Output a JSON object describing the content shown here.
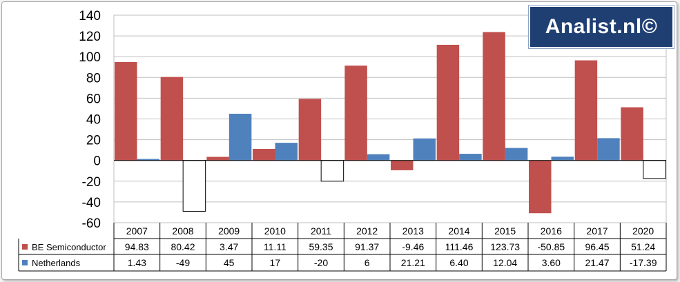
{
  "watermark": "Analist.nl©",
  "chart_data": {
    "type": "bar",
    "categories": [
      "2007",
      "2008",
      "2009",
      "2010",
      "2011",
      "2012",
      "2013",
      "2014",
      "2015",
      "2016",
      "2017",
      "2020"
    ],
    "series": [
      {
        "name": "BE Semiconductor",
        "color": "#c0504d",
        "values": [
          94.83,
          80.42,
          3.47,
          11.11,
          59.35,
          91.37,
          -9.46,
          111.46,
          123.73,
          -50.85,
          96.45,
          51.24
        ],
        "labels": [
          "94.83",
          "80.42",
          "3.47",
          "11.11",
          "59.35",
          "91.37",
          "-9.46",
          "111.46",
          "123.73",
          "-50.85",
          "96.45",
          "51.24"
        ]
      },
      {
        "name": "Netherlands",
        "color": "#4f81bd",
        "negative_fill": "#ffffff",
        "values": [
          1.43,
          -49,
          45,
          17,
          -20,
          6,
          21.21,
          6.4,
          12.04,
          3.6,
          21.47,
          -17.39
        ],
        "labels": [
          "1.43",
          "-49",
          "45",
          "17",
          "-20",
          "6",
          "21.21",
          "6.40",
          "12.04",
          "3.60",
          "21.47",
          "-17.39"
        ]
      }
    ],
    "yticks": [
      "140",
      "120",
      "100",
      "80",
      "60",
      "40",
      "20",
      "0",
      "-20",
      "-40",
      "-60"
    ],
    "ylim": [
      -60,
      140
    ],
    "grid": true,
    "legend": "data-table"
  }
}
